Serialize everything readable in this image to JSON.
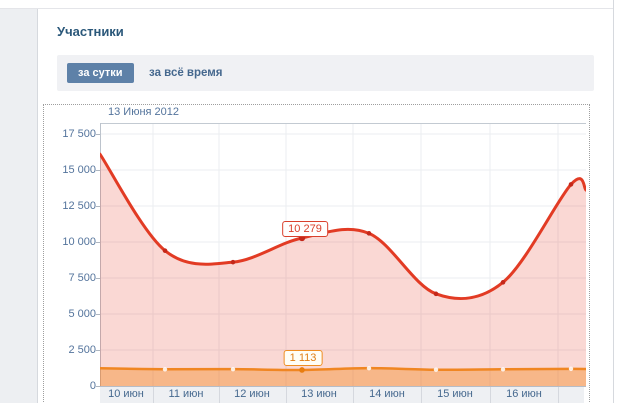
{
  "page": {
    "title": "Участники"
  },
  "tabs": {
    "per_day_label": "за сутки",
    "all_time_label": "за всё время"
  },
  "chart": {
    "hover_date": "13 Июня 2012",
    "y_ticks": [
      "17 500",
      "15 000",
      "12 500",
      "10 000",
      "7 500",
      "5 000",
      "2 500",
      "0"
    ],
    "x_labels": [
      "10 июн",
      "11 июн",
      "12 июн",
      "13 июн",
      "14 июн",
      "15 июн",
      "16 июн"
    ],
    "tooltip_red": "10 279",
    "tooltip_orange": "1 113"
  },
  "colors": {
    "accent_tab": "#5e81a8",
    "red_line": "#e23b24",
    "orange_line": "#f08622",
    "red_fill": "rgba(232,60,40,0.2)",
    "orange_fill": "rgba(242,138,34,0.42)"
  },
  "chart_data": {
    "type": "area",
    "title": "Участники",
    "hover_date": "13 Июня 2012",
    "categories": [
      "10 июн",
      "11 июн",
      "12 июн",
      "13 июн",
      "14 июн",
      "15 июн",
      "16 июн",
      "",
      ""
    ],
    "series": [
      {
        "id": "members-red",
        "color": "#e23b24",
        "values": [
          16100,
          9400,
          8600,
          10279,
          10600,
          6400,
          7200,
          14000,
          13600
        ]
      },
      {
        "id": "members-orange",
        "color": "#f08622",
        "values": [
          1230,
          1160,
          1170,
          1113,
          1240,
          1130,
          1160,
          1190,
          1180
        ]
      }
    ],
    "highlighted": {
      "category": "13 июн",
      "date_label": "13 Июня 2012",
      "red_value": 10279,
      "orange_value": 1113
    },
    "ylim": [
      0,
      18264
    ],
    "y_tick_values": [
      0,
      2500,
      5000,
      7500,
      10000,
      12500,
      15000,
      17500
    ],
    "grid": true,
    "legend": false
  }
}
